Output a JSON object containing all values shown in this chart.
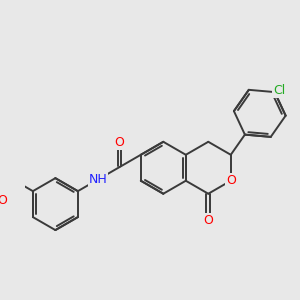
{
  "background_color": "#e8e8e8",
  "bond_color": "#3a3a3a",
  "bond_width": 1.4,
  "atom_colors": {
    "O": "#ff0000",
    "N": "#2020ff",
    "Cl": "#22aa22",
    "C": "#3a3a3a"
  },
  "font_size": 8.5,
  "fig_width": 3.0,
  "fig_height": 3.0,
  "dpi": 100
}
